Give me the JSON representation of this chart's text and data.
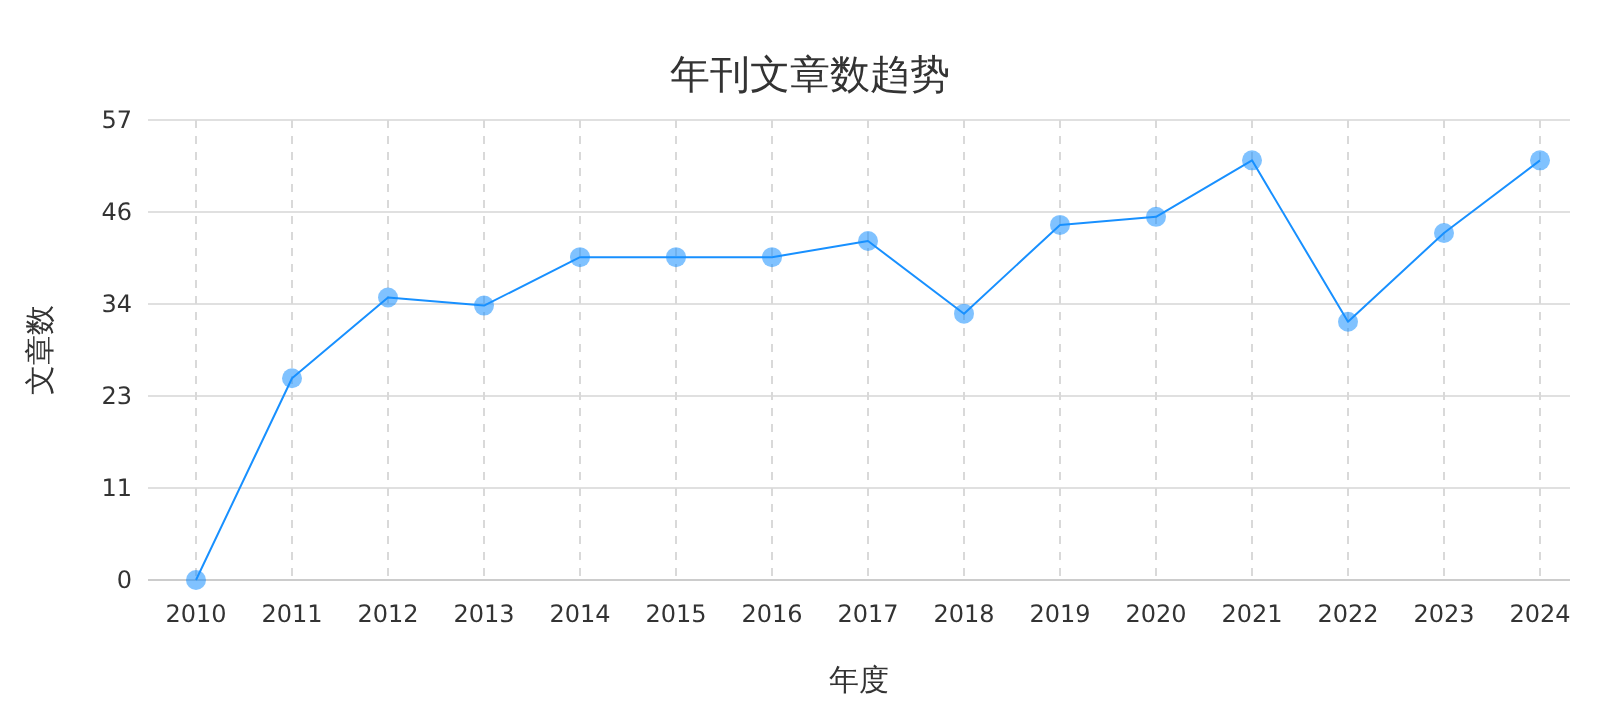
{
  "chart_data": {
    "type": "line",
    "title": "年刊文章数趋势",
    "xlabel": "年度",
    "ylabel": "文章数",
    "categories": [
      "2010",
      "2011",
      "2012",
      "2013",
      "2014",
      "2015",
      "2016",
      "2017",
      "2018",
      "2019",
      "2020",
      "2021",
      "2022",
      "2023",
      "2024"
    ],
    "series": [
      {
        "color": "#1890ff",
        "values": [
          0,
          25,
          35,
          34,
          40,
          40,
          40,
          42,
          33,
          44,
          45,
          52,
          32,
          43,
          52
        ]
      }
    ],
    "ylim": [
      0,
      57
    ],
    "yticks": [
      0,
      {
        "value": 11.4,
        "label": "11"
      },
      {
        "value": 22.8,
        "label": "23"
      },
      {
        "value": 34.2,
        "label": "34"
      },
      {
        "value": 45.6,
        "label": "46"
      },
      57
    ],
    "grid": true,
    "marker": "circle",
    "line_style": "solid"
  }
}
